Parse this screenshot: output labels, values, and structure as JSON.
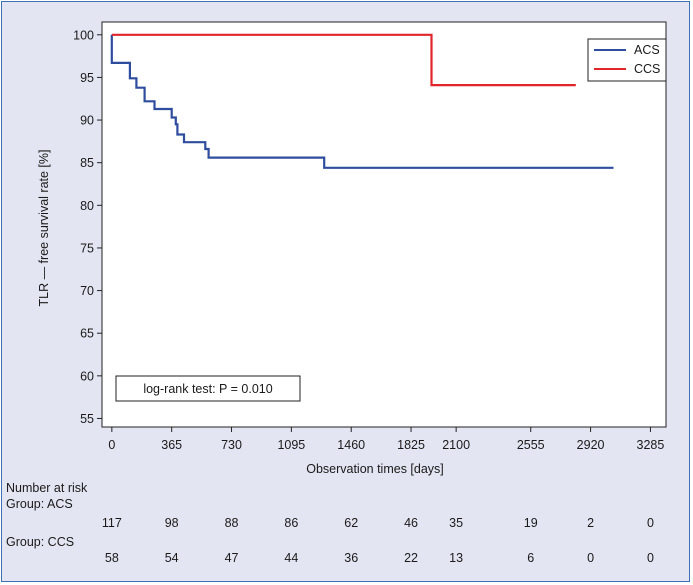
{
  "chart_data": {
    "type": "line",
    "step": true,
    "xlabel": "Observation times [days]",
    "ylabel": "TLR — free survival rate [%]",
    "xlim": [
      -60,
      3380
    ],
    "ylim": [
      54,
      101.5
    ],
    "xticks": [
      0,
      365,
      730,
      1095,
      1460,
      1825,
      2100,
      2555,
      2920,
      3285
    ],
    "yticks": [
      55,
      60,
      65,
      70,
      75,
      80,
      85,
      90,
      95,
      100
    ],
    "annotation": "log-rank test: P = 0.010",
    "legend_position": "top-right",
    "series": [
      {
        "name": "ACS",
        "color": "#2f4d9e",
        "points": [
          [
            0,
            100
          ],
          [
            0,
            96.7
          ],
          [
            110,
            96.7
          ],
          [
            110,
            94.9
          ],
          [
            150,
            94.9
          ],
          [
            150,
            93.8
          ],
          [
            200,
            93.8
          ],
          [
            200,
            92.2
          ],
          [
            260,
            92.2
          ],
          [
            260,
            91.3
          ],
          [
            365,
            91.3
          ],
          [
            365,
            90.3
          ],
          [
            390,
            90.3
          ],
          [
            390,
            89.5
          ],
          [
            400,
            89.5
          ],
          [
            400,
            88.3
          ],
          [
            440,
            88.3
          ],
          [
            440,
            87.4
          ],
          [
            570,
            87.4
          ],
          [
            570,
            86.6
          ],
          [
            590,
            86.6
          ],
          [
            590,
            85.6
          ],
          [
            1295,
            85.6
          ],
          [
            1295,
            84.4
          ],
          [
            3060,
            84.4
          ]
        ]
      },
      {
        "name": "CCS",
        "color": "#e0252b",
        "points": [
          [
            0,
            100
          ],
          [
            1950,
            100
          ],
          [
            1950,
            94.1
          ],
          [
            2830,
            94.1
          ]
        ]
      }
    ]
  },
  "risk_table": {
    "title": "Number at risk",
    "groups": [
      {
        "label": "Group: ACS",
        "counts": [
          "117",
          "98",
          "88",
          "86",
          "62",
          "46",
          "35",
          "19",
          "2",
          "0"
        ]
      },
      {
        "label": "Group: CCS",
        "counts": [
          "58",
          "54",
          "47",
          "44",
          "36",
          "22",
          "13",
          "6",
          "0",
          "0"
        ]
      }
    ]
  }
}
